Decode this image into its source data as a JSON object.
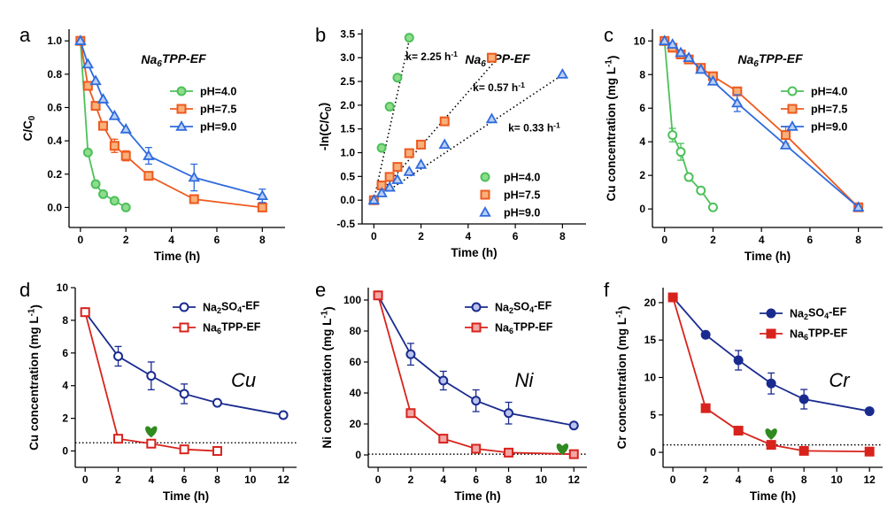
{
  "chart_data": [
    {
      "panel": "a",
      "type": "line",
      "title": "Na<sub>6</sub>TPP-EF",
      "xlabel": "Time (h)",
      "ylabel": "C/C<sub>0</sub>",
      "xlim": [
        -0.5,
        9
      ],
      "ylim": [
        -0.12,
        1.07
      ],
      "xticks": [
        0,
        2,
        4,
        6,
        8
      ],
      "yticks": [
        0.0,
        0.2,
        0.4,
        0.6,
        0.8,
        1.0
      ],
      "yfmt": 1,
      "legend_position": "top-right",
      "series": [
        {
          "name": "pH=4.0",
          "color": "#4cc15a",
          "face": "#8fdc8d",
          "marker": "circle",
          "x": [
            0,
            0.33,
            0.67,
            1,
            1.5,
            2
          ],
          "y": [
            1.0,
            0.33,
            0.14,
            0.08,
            0.04,
            0.0
          ],
          "err": [
            0,
            0,
            0,
            0,
            0.01,
            0
          ]
        },
        {
          "name": "pH=7.5",
          "color": "#ee5a1f",
          "face": "#f8b07a",
          "marker": "square",
          "x": [
            0,
            0.33,
            0.67,
            1,
            1.5,
            2,
            3,
            5,
            8
          ],
          "y": [
            1.0,
            0.73,
            0.61,
            0.49,
            0.37,
            0.31,
            0.19,
            0.05,
            0.0
          ],
          "err": [
            0,
            0,
            0,
            0,
            0.04,
            0.03,
            0,
            0,
            0
          ]
        },
        {
          "name": "pH=9.0",
          "color": "#2f6bde",
          "face": "#b9cff4",
          "marker": "triangle",
          "x": [
            0,
            0.33,
            0.67,
            1,
            1.5,
            2,
            3,
            5,
            8
          ],
          "y": [
            1.0,
            0.86,
            0.76,
            0.65,
            0.55,
            0.47,
            0.31,
            0.18,
            0.07
          ],
          "err": [
            0,
            0,
            0,
            0,
            0,
            0,
            0.05,
            0.08,
            0.04
          ]
        }
      ]
    },
    {
      "panel": "b",
      "type": "scatter",
      "title": "Na<sub>6</sub>TPP-EF",
      "xlabel": "Time (h)",
      "ylabel": "-ln(C/C<sub>0</sub>)",
      "xlim": [
        -0.5,
        9
      ],
      "ylim": [
        -0.5,
        3.6
      ],
      "xticks": [
        0,
        2,
        4,
        6,
        8
      ],
      "yticks": [
        -0.5,
        0.0,
        0.5,
        1.0,
        1.5,
        2.0,
        2.5,
        3.0,
        3.5
      ],
      "yfmt": 1,
      "legend_position": "bottom-right",
      "series": [
        {
          "name": "pH=4.0",
          "color": "#4cc15a",
          "face": "#8fdc8d",
          "marker": "circle",
          "x": [
            0,
            0.33,
            0.67,
            1,
            1.5
          ],
          "y": [
            0.0,
            1.1,
            1.97,
            2.58,
            3.42
          ],
          "fit_k": 2.25
        },
        {
          "name": "pH=7.5",
          "color": "#ee5a1f",
          "face": "#f8b07a",
          "marker": "square",
          "x": [
            0,
            0.33,
            0.67,
            1,
            1.5,
            2,
            3,
            5
          ],
          "y": [
            0.0,
            0.31,
            0.49,
            0.7,
            0.99,
            1.17,
            1.66,
            3.0
          ],
          "fit_k": 0.57
        },
        {
          "name": "pH=9.0",
          "color": "#2f6bde",
          "face": "#b9cff4",
          "marker": "triangle",
          "x": [
            0,
            0.33,
            0.67,
            1,
            1.5,
            2,
            3,
            5,
            8
          ],
          "y": [
            0.0,
            0.15,
            0.27,
            0.43,
            0.6,
            0.75,
            1.17,
            1.71,
            2.65
          ],
          "fit_k": 0.33
        }
      ],
      "annotations": [
        {
          "text": "k= 2.25 h<sup>-1</sup>",
          "x": 1.35,
          "y": 2.95
        },
        {
          "text": "k= 0.57 h<sup>-1</sup>",
          "x": 4.2,
          "y": 2.3
        },
        {
          "text": "k= 0.33 h<sup>-1</sup>",
          "x": 5.7,
          "y": 1.45
        }
      ]
    },
    {
      "panel": "c",
      "type": "line",
      "title": "Na<sub>6</sub>TPP-EF",
      "xlabel": "Time (h)",
      "ylabel": "Cu concentration (mg L<sup>-1</sup>)",
      "xlim": [
        -0.5,
        9
      ],
      "ylim": [
        -1.1,
        10.7
      ],
      "xticks": [
        0,
        2,
        4,
        6,
        8
      ],
      "yticks": [
        0,
        2,
        4,
        6,
        8,
        10
      ],
      "yfmt": 0,
      "legend_position": "right",
      "series": [
        {
          "name": "pH=4.0",
          "color": "#4cc15a",
          "face": "#ffffff",
          "marker": "circle",
          "x": [
            0,
            0.33,
            0.67,
            1,
            1.5,
            2
          ],
          "y": [
            10.0,
            4.4,
            3.4,
            1.9,
            1.1,
            0.1
          ],
          "err": [
            0,
            0.4,
            0.5,
            0,
            0,
            0
          ]
        },
        {
          "name": "pH=7.5",
          "color": "#ee5a1f",
          "face": "#f8b07a",
          "marker": "square",
          "x": [
            0,
            0.33,
            0.67,
            1,
            1.5,
            2,
            3,
            5,
            8
          ],
          "y": [
            10.0,
            9.6,
            9.2,
            8.9,
            8.4,
            7.9,
            7.0,
            4.4,
            0.1
          ],
          "err": [
            0,
            0,
            0,
            0,
            0,
            0,
            0,
            0.5,
            0
          ]
        },
        {
          "name": "pH=9.0",
          "color": "#2f6bde",
          "face": "#b9cff4",
          "marker": "triangle",
          "x": [
            0,
            0.33,
            0.67,
            1,
            1.5,
            2,
            3,
            5,
            8
          ],
          "y": [
            10.0,
            9.8,
            9.3,
            9.0,
            8.3,
            7.6,
            6.3,
            3.8,
            0.1
          ],
          "err": [
            0,
            0,
            0,
            0,
            0,
            0,
            0.5,
            0,
            0
          ]
        }
      ]
    },
    {
      "panel": "d",
      "type": "line",
      "xlabel": "Time (h)",
      "ylabel": "Cu concentration (mg L<sup>-1</sup>)",
      "xlim": [
        -0.6,
        12.8
      ],
      "ylim": [
        -1,
        10
      ],
      "xticks": [
        0,
        2,
        4,
        6,
        8,
        10,
        12
      ],
      "yticks": [
        0,
        2,
        4,
        6,
        8,
        10
      ],
      "yfmt": 0,
      "element": "Cu",
      "limit_line": 0.5,
      "heart": {
        "x": 4,
        "y": 1.2
      },
      "legend_position": "top-right",
      "series": [
        {
          "name": "Na<sub>2</sub>SO<sub>4</sub>-EF",
          "color": "#1a2b8f",
          "face": "#ffffff",
          "marker": "circle",
          "x": [
            0,
            2,
            4,
            6,
            8,
            12
          ],
          "y": [
            8.5,
            5.8,
            4.6,
            3.5,
            2.95,
            2.2
          ],
          "err": [
            0,
            0.6,
            0.85,
            0.6,
            0,
            0
          ]
        },
        {
          "name": "Na<sub>6</sub>TPP-EF",
          "color": "#d8231d",
          "face": "#ffffff",
          "marker": "square",
          "x": [
            0,
            2,
            4,
            6,
            8
          ],
          "y": [
            8.5,
            0.75,
            0.45,
            0.1,
            0.0
          ],
          "err": [
            0,
            0.15,
            0,
            0.1,
            0
          ]
        }
      ]
    },
    {
      "panel": "e",
      "type": "line",
      "xlabel": "Time (h)",
      "ylabel": "Ni concentration (mg L<sup>-1</sup>)",
      "xlim": [
        -0.6,
        12.8
      ],
      "ylim": [
        -8,
        108
      ],
      "xticks": [
        0,
        2,
        4,
        6,
        8,
        10,
        12
      ],
      "yticks": [
        0,
        20,
        40,
        60,
        80,
        100
      ],
      "yfmt": 0,
      "element": "Ni",
      "limit_line": 0.5,
      "heart": {
        "x": 11.3,
        "y": 4
      },
      "legend_position": "top-right",
      "series": [
        {
          "name": "Na<sub>2</sub>SO<sub>4</sub>-EF",
          "color": "#1a2b8f",
          "face": "#b9c3ee",
          "marker": "circle",
          "x": [
            0,
            2,
            4,
            6,
            8,
            12
          ],
          "y": [
            103,
            65,
            48,
            35,
            27,
            19
          ],
          "err": [
            0,
            7,
            6,
            7,
            7,
            0
          ]
        },
        {
          "name": "Na<sub>6</sub>TPP-EF",
          "color": "#d8231d",
          "face": "#f2a7a5",
          "marker": "square",
          "x": [
            0,
            2,
            4,
            6,
            8,
            12
          ],
          "y": [
            103,
            27,
            10.5,
            4,
            1.5,
            0.5
          ],
          "err": [
            0,
            0,
            0,
            0,
            0,
            0
          ]
        }
      ]
    },
    {
      "panel": "f",
      "type": "line",
      "xlabel": "Time (h)",
      "ylabel": "Cr concentration (mg L<sup>-1</sup>)",
      "xlim": [
        -0.6,
        12.8
      ],
      "ylim": [
        -2,
        22
      ],
      "xticks": [
        0,
        2,
        4,
        6,
        8,
        10,
        12
      ],
      "yticks": [
        0,
        5,
        10,
        15,
        20
      ],
      "yfmt": 0,
      "element": "Cr",
      "limit_line": 1.0,
      "heart": {
        "x": 6,
        "y": 2.5
      },
      "legend_position": "top-right",
      "series": [
        {
          "name": "Na<sub>2</sub>SO<sub>4</sub>-EF",
          "color": "#1a2b8f",
          "face": "#1a2b8f",
          "marker": "circle",
          "x": [
            0,
            2,
            4,
            6,
            8,
            12
          ],
          "y": [
            20.7,
            15.7,
            12.3,
            9.2,
            7.1,
            5.5
          ],
          "err": [
            0.5,
            0,
            1.3,
            1.4,
            1.3,
            0
          ]
        },
        {
          "name": "Na<sub>6</sub>TPP-EF",
          "color": "#d8231d",
          "face": "#d8231d",
          "marker": "square",
          "x": [
            0,
            2,
            4,
            6,
            8,
            12
          ],
          "y": [
            20.7,
            5.9,
            2.9,
            1.0,
            0.2,
            0.1
          ],
          "err": [
            0,
            0,
            0,
            0,
            0,
            0
          ]
        }
      ]
    }
  ],
  "panel_labels": [
    "a",
    "b",
    "c",
    "d",
    "e",
    "f"
  ]
}
